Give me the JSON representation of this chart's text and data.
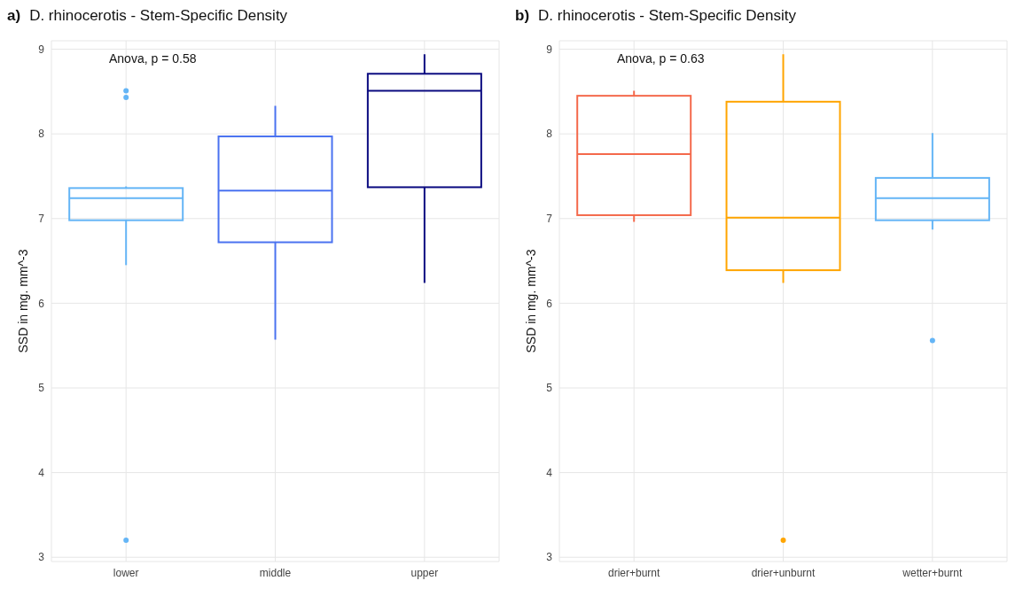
{
  "chart_data": [
    {
      "type": "box",
      "title": "D. rhinocerotis - Stem-Specific Density",
      "ylabel": "SSD in  mg. mm^-3",
      "annotations": [
        "a)",
        "Anova, p = 0.58"
      ],
      "categories": [
        "lower",
        "middle",
        "upper"
      ],
      "colors": [
        "#64b5f6",
        "#4a72f0",
        "#0b0b80"
      ],
      "boxes": [
        {
          "low": 6.45,
          "q1": 6.98,
          "median": 7.24,
          "q3": 7.36,
          "high": 7.38,
          "outliers": [
            8.51,
            8.43,
            3.2
          ]
        },
        {
          "low": 5.57,
          "q1": 6.72,
          "median": 7.33,
          "q3": 7.97,
          "high": 8.33
        },
        {
          "low": 6.24,
          "q1": 7.37,
          "median": 8.51,
          "q3": 8.71,
          "high": 8.94
        }
      ],
      "ylim": [
        2.95,
        9.1
      ],
      "yticks": [
        3,
        4,
        5,
        6,
        7,
        8,
        9
      ],
      "grid": true,
      "legend": false
    },
    {
      "type": "box",
      "title": "D. rhinocerotis - Stem-Specific Density",
      "ylabel": "SSD in  mg. mm^-3",
      "annotations": [
        "b)",
        "Anova, p = 0.63"
      ],
      "categories": [
        "drier+burnt",
        "drier+unburnt",
        "wetter+burnt"
      ],
      "colors": [
        "#f4694b",
        "#ffa500",
        "#64b5f6"
      ],
      "boxes": [
        {
          "low": 6.96,
          "q1": 7.04,
          "median": 7.76,
          "q3": 8.45,
          "high": 8.51
        },
        {
          "low": 6.24,
          "q1": 6.39,
          "median": 7.01,
          "q3": 8.38,
          "high": 8.94,
          "outliers": [
            3.2
          ]
        },
        {
          "low": 6.87,
          "q1": 6.98,
          "median": 7.24,
          "q3": 7.48,
          "high": 8.01,
          "outliers": [
            5.56
          ]
        }
      ],
      "ylim": [
        2.95,
        9.1
      ],
      "yticks": [
        3,
        4,
        5,
        6,
        7,
        8,
        9
      ],
      "grid": true,
      "legend": false
    }
  ]
}
